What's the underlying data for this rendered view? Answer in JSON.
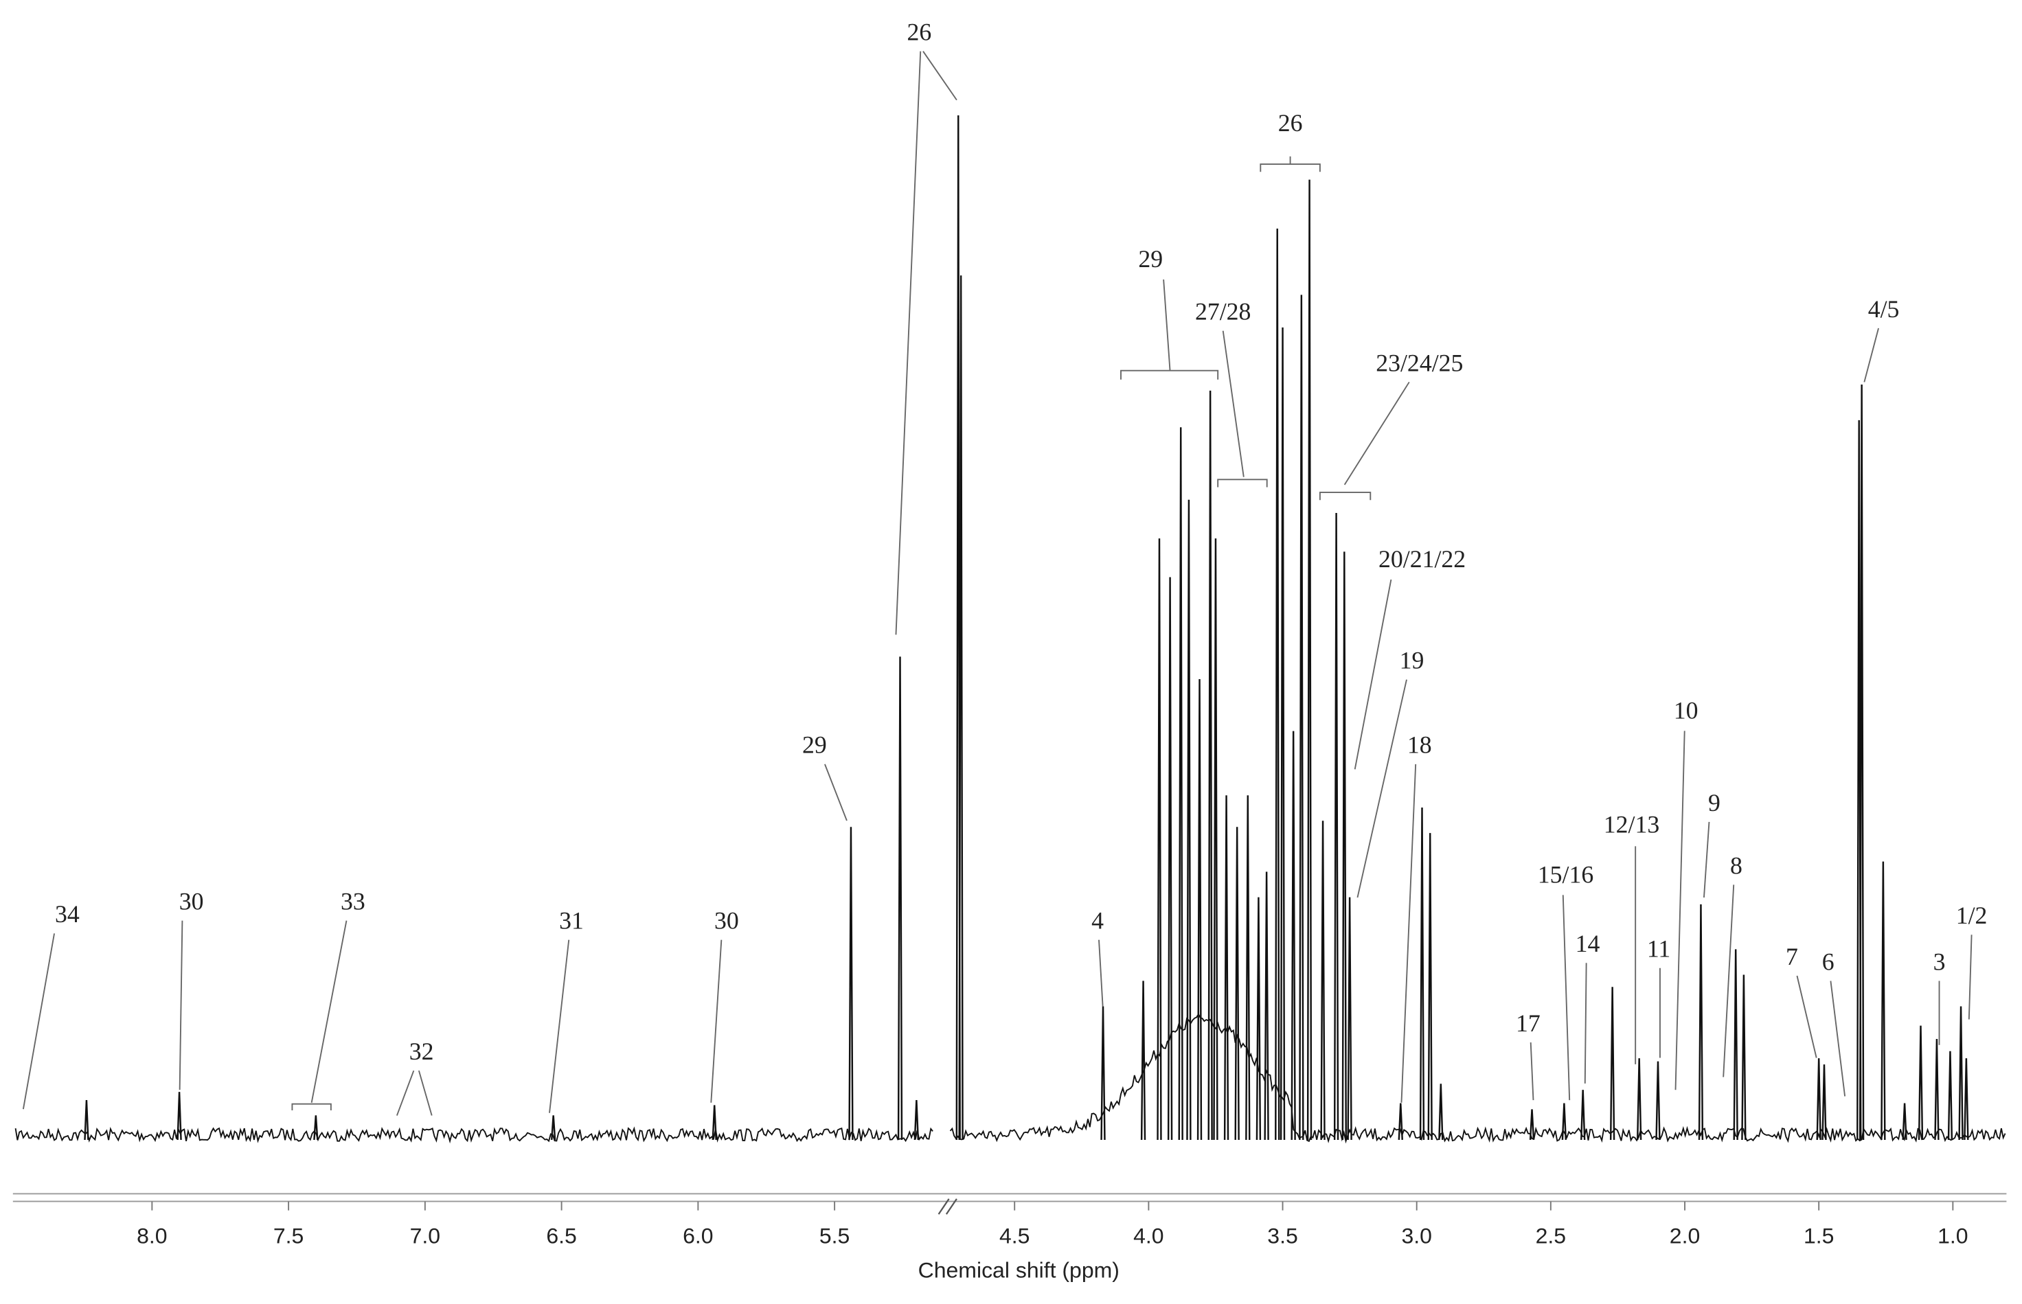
{
  "chart_data": {
    "type": "spectrum",
    "x_label": "Chemical shift (ppm)",
    "color": "#111111",
    "xaxis_segments": [
      {
        "xlim": [
          8.5,
          5.1
        ],
        "xticks": [
          {
            "value": 8,
            "label": "8.0"
          },
          7.5,
          {
            "value": 7,
            "label": "7.0"
          },
          6.5,
          {
            "value": 6,
            "label": "6.0"
          },
          5.5
        ]
      },
      {
        "xlim": [
          4.74,
          0.8
        ],
        "xticks": [
          4.5,
          {
            "value": 4,
            "label": "4.0"
          },
          3.5,
          {
            "value": 3,
            "label": "3.0"
          },
          2.5,
          {
            "value": 2,
            "label": "2.0"
          },
          1.5,
          {
            "value": 1,
            "label": "1.0"
          }
        ]
      }
    ],
    "peaks": {
      "x": [
        8.24,
        7.9,
        7.4,
        6.53,
        5.94,
        5.44,
        5.26,
        5.2,
        4.71,
        4.7,
        4.17,
        4.02,
        3.96,
        3.92,
        3.88,
        3.85,
        3.81,
        3.77,
        3.75,
        3.71,
        3.67,
        3.63,
        3.59,
        3.56,
        3.52,
        3.5,
        3.46,
        3.43,
        3.4,
        3.35,
        3.3,
        3.27,
        3.25,
        3.06,
        2.98,
        2.95,
        2.91,
        2.57,
        2.45,
        2.38,
        2.27,
        2.17,
        2.1,
        1.94,
        1.81,
        1.78,
        1.5,
        1.48,
        1.35,
        1.34,
        1.26,
        1.18,
        1.12,
        1.06,
        1.01,
        0.97,
        0.95
      ],
      "values": [
        3.4,
        4.2,
        1.9,
        1.9,
        2.9,
        30.2,
        46.9,
        3.4,
        100,
        84.3,
        12.6,
        15.1,
        58.5,
        54.7,
        69.4,
        62.3,
        44.7,
        73.0,
        58.5,
        33.3,
        30.2,
        33.3,
        23.3,
        25.8,
        88.9,
        79.2,
        39.6,
        82.4,
        93.7,
        30.8,
        61.0,
        57.2,
        23.3,
        3.1,
        32.1,
        29.6,
        5.0,
        2.5,
        3.1,
        4.4,
        14.5,
        7.5,
        7.2,
        22.6,
        18.2,
        15.7,
        7.5,
        6.9,
        70.1,
        73.6,
        26.8,
        3.1,
        10.7,
        9.4,
        8.2,
        12.6,
        7.5
      ]
    },
    "annotations": [
      {
        "text": "34"
      },
      {
        "text": "30"
      },
      {
        "text": "33"
      },
      {
        "text": "32"
      },
      {
        "text": "31"
      },
      {
        "text": "30"
      },
      {
        "text": "29"
      },
      {
        "text": "26"
      },
      {
        "text": "26"
      },
      {
        "text": "29"
      },
      {
        "text": "27/28"
      },
      {
        "text": "23/24/25"
      },
      {
        "text": "20/21/22"
      },
      {
        "text": "19"
      },
      {
        "text": "18"
      },
      {
        "text": "17"
      },
      {
        "text": "15/16"
      },
      {
        "text": "14"
      },
      {
        "text": "12/13"
      },
      {
        "text": "11"
      },
      {
        "text": "10"
      },
      {
        "text": "9"
      },
      {
        "text": "8"
      },
      {
        "text": "7"
      },
      {
        "text": "6"
      },
      {
        "text": "4/5"
      },
      {
        "text": "3"
      },
      {
        "text": "1/2"
      },
      {
        "text": "4"
      }
    ]
  }
}
